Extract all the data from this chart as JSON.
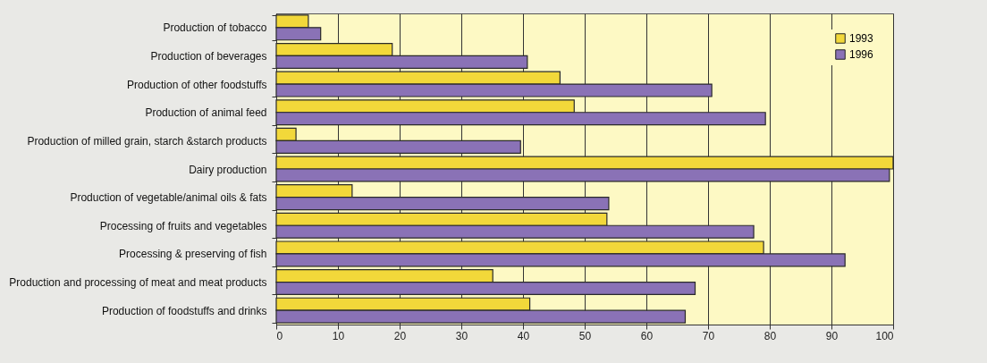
{
  "chart_data": {
    "type": "bar",
    "orientation": "horizontal",
    "categories": [
      "Production of tobacco",
      "Production of beverages",
      "Production of other foodstuffs",
      "Production of animal feed",
      "Production of milled grain, starch &starch products",
      "Dairy production",
      "Production of vegetable/animal oils & fats",
      "Processing of fruits and vegetables",
      "Processing & preserving of fish",
      "Production and processing of meat and meat products",
      "Production of foodstuffs and drinks"
    ],
    "series": [
      {
        "name": "1993",
        "color": "#f2d83a",
        "values": [
          5.2,
          18.8,
          46,
          48.3,
          3.2,
          100,
          12.3,
          53.6,
          79,
          35.1,
          41.1
        ]
      },
      {
        "name": "1996",
        "color": "#8a72b6",
        "values": [
          7.2,
          40.7,
          70.6,
          79.3,
          39.6,
          99.4,
          53.9,
          77.4,
          92.2,
          67.9,
          66.3
        ]
      }
    ],
    "xlim": [
      0,
      100
    ],
    "xticks": [
      0,
      10,
      20,
      30,
      40,
      50,
      60,
      70,
      80,
      90,
      100
    ],
    "grid": "x",
    "legend": "top right"
  }
}
